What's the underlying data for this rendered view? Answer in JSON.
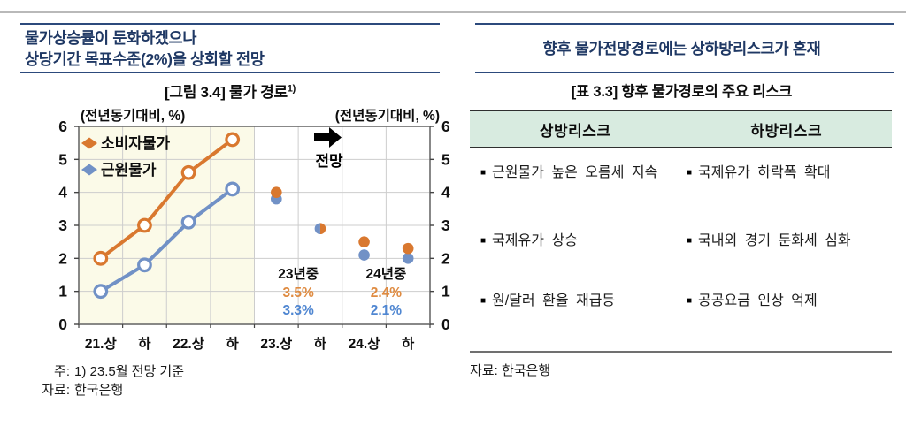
{
  "left": {
    "headline_line1": "물가상승률이 둔화하겠으나",
    "headline_line2": "상당기간 목표수준(2%)을 상회할 전망",
    "chart_title": "[그림 3.4] 물가 경로",
    "chart_title_sup": "1)",
    "footnote_note_label": "주:",
    "footnote_note": "1) 23.5월 전망 기준",
    "footnote_source_label": "자료:",
    "footnote_source": "한국은행"
  },
  "right": {
    "headline": "향후 물가전망경로에는 상하방리스크가 혼재",
    "table_title": "[표 3.3] 향후 물가경로의 주요 리스크",
    "table": {
      "bullet_icon": "■",
      "header_bg": "#d8ebe0",
      "headers": [
        "상방리스크",
        "하방리스크"
      ],
      "rows": [
        {
          "up": "근원물가 높은 오름세 지속",
          "down": "국제유가 하락폭 확대"
        },
        {
          "up": "국제유가 상승",
          "down": "국내외 경기 둔화세 심화"
        },
        {
          "up": "원/달러 환율 재급등",
          "down": "공공요금 인상 억제"
        }
      ]
    },
    "source_label": "자료:",
    "source": "한국은행"
  },
  "chart_data": {
    "type": "line",
    "title": "[그림 3.4] 물가 경로1)",
    "unit_label_left": "(전년동기대비, %)",
    "unit_label_right": "(전년동기대비, %)",
    "categories": [
      "21.상",
      "하",
      "22.상",
      "하",
      "23.상",
      "하",
      "24.상",
      "하"
    ],
    "ylim": [
      0,
      6
    ],
    "ytick_step": 1,
    "actual_count": 4,
    "actual_region_bg": "#fbfae8",
    "forecast_annotation": "전망",
    "accent_navy": "#1f3864",
    "grid_color": "#cdcdcd",
    "axis_color": "#6b6b6b",
    "series": [
      {
        "name": "소비자물가",
        "color": "#d9782f",
        "text_color": "#df8b41",
        "values": [
          2.0,
          3.0,
          4.6,
          5.6,
          4.0,
          2.9,
          2.5,
          2.3
        ]
      },
      {
        "name": "근원물가",
        "color": "#7191c6",
        "text_color": "#4f86d1",
        "values": [
          1.0,
          1.8,
          3.1,
          4.1,
          3.8,
          2.9,
          2.1,
          2.0
        ]
      }
    ],
    "period_summaries": [
      {
        "label": "23년중",
        "values": [
          "3.5%",
          "3.3%"
        ]
      },
      {
        "label": "24년중",
        "values": [
          "2.4%",
          "2.1%"
        ]
      }
    ]
  }
}
